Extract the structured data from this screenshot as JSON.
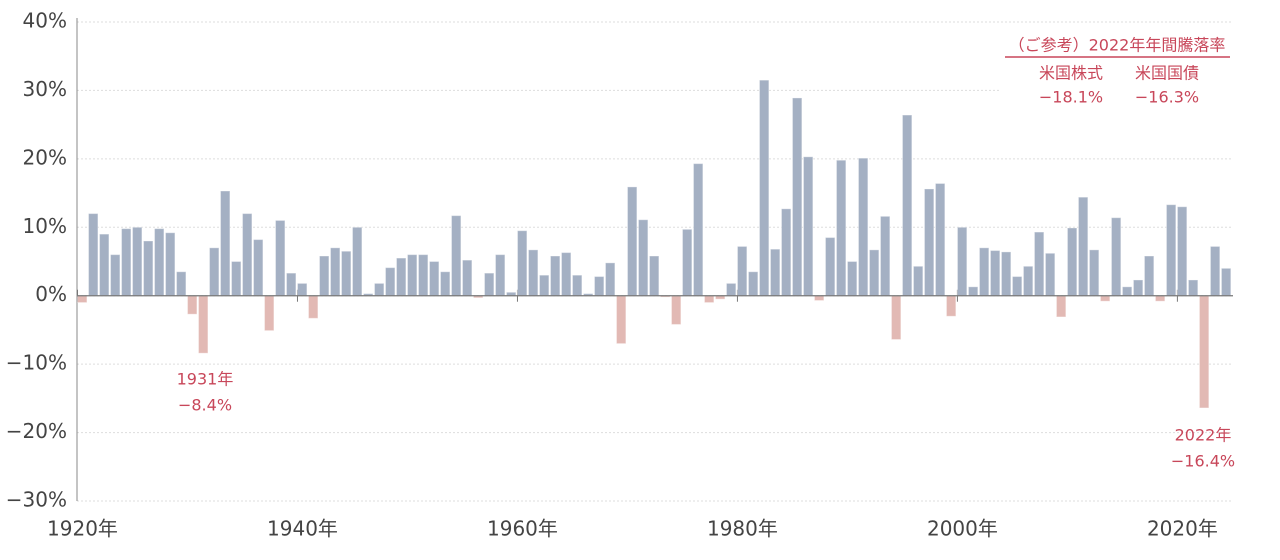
{
  "chart_data": {
    "type": "bar",
    "x": [
      1920,
      1921,
      1922,
      1923,
      1924,
      1925,
      1926,
      1927,
      1928,
      1929,
      1930,
      1931,
      1932,
      1933,
      1934,
      1935,
      1936,
      1937,
      1938,
      1939,
      1940,
      1941,
      1942,
      1943,
      1944,
      1945,
      1946,
      1947,
      1948,
      1949,
      1950,
      1951,
      1952,
      1953,
      1954,
      1955,
      1956,
      1957,
      1958,
      1959,
      1960,
      1961,
      1962,
      1963,
      1964,
      1965,
      1966,
      1967,
      1968,
      1969,
      1970,
      1971,
      1972,
      1973,
      1974,
      1975,
      1976,
      1977,
      1978,
      1979,
      1980,
      1981,
      1982,
      1983,
      1984,
      1985,
      1986,
      1987,
      1988,
      1989,
      1990,
      1991,
      1992,
      1993,
      1994,
      1995,
      1996,
      1997,
      1998,
      1999,
      2000,
      2001,
      2002,
      2003,
      2004,
      2005,
      2006,
      2007,
      2008,
      2009,
      2010,
      2011,
      2012,
      2013,
      2014,
      2015,
      2016,
      2017,
      2018,
      2019,
      2020,
      2021,
      2022,
      2023,
      2024
    ],
    "values": [
      -1.0,
      12.0,
      9.0,
      6.0,
      9.8,
      10.0,
      8.0,
      9.8,
      9.2,
      3.5,
      -2.7,
      -8.4,
      7.0,
      15.3,
      5.0,
      12.0,
      8.2,
      -5.1,
      11.0,
      3.3,
      1.8,
      -3.3,
      5.8,
      7.0,
      6.5,
      10.0,
      0.3,
      1.8,
      4.1,
      5.5,
      6.0,
      6.0,
      5.0,
      3.5,
      11.7,
      5.2,
      -0.3,
      3.3,
      6.0,
      0.5,
      9.5,
      6.7,
      3.0,
      5.8,
      6.3,
      3.0,
      0.3,
      2.8,
      4.8,
      -7.0,
      15.9,
      11.1,
      5.8,
      -0.2,
      -4.2,
      9.7,
      19.3,
      -1.0,
      -0.5,
      1.8,
      7.2,
      3.5,
      31.5,
      6.8,
      12.7,
      28.9,
      20.3,
      -0.7,
      8.5,
      19.8,
      5.0,
      20.1,
      6.7,
      11.6,
      -6.4,
      26.4,
      4.3,
      15.6,
      16.4,
      -3.0,
      10.0,
      1.3,
      7.0,
      6.6,
      6.4,
      2.8,
      4.3,
      9.3,
      6.2,
      -3.1,
      9.9,
      14.4,
      6.7,
      -0.8,
      11.4,
      1.3,
      2.3,
      5.8,
      -0.8,
      13.3,
      13.0,
      2.3,
      -16.4,
      7.2,
      4.0
    ],
    "color": "#a4b0c3",
    "negative_color": "#e2b9b4",
    "xlim": [
      1919.5,
      2024.6
    ],
    "xticks": [
      {
        "value": 1920,
        "label": "1920年"
      },
      {
        "value": 1940,
        "label": "1940年"
      },
      {
        "value": 1960,
        "label": "1960年"
      },
      {
        "value": 1980,
        "label": "1980年"
      },
      {
        "value": 2000,
        "label": "2000年"
      },
      {
        "value": 2020,
        "label": "2020年"
      }
    ],
    "ylim": [
      -30,
      40
    ],
    "yticks": [
      {
        "value": -30,
        "label": "−30%"
      },
      {
        "value": -20,
        "label": "−20%"
      },
      {
        "value": -10,
        "label": "−10%"
      },
      {
        "value": 0,
        "label": "0%"
      },
      {
        "value": 10,
        "label": "10%"
      },
      {
        "value": 20,
        "label": "20%"
      },
      {
        "value": 30,
        "label": "30%"
      },
      {
        "value": 40,
        "label": "40%"
      }
    ],
    "grid": true,
    "annotations": {
      "low_1931_year": "1931年",
      "low_1931_value": "−8.4%",
      "low_2022_year": "2022年",
      "low_2022_value": "−16.4%",
      "reference_title": "（ご参考）2022年年間騰落率",
      "stocks_label": "米国株式",
      "stocks_value": "−18.1%",
      "bonds_label": "米国国債",
      "bonds_value": "−16.3%"
    }
  }
}
